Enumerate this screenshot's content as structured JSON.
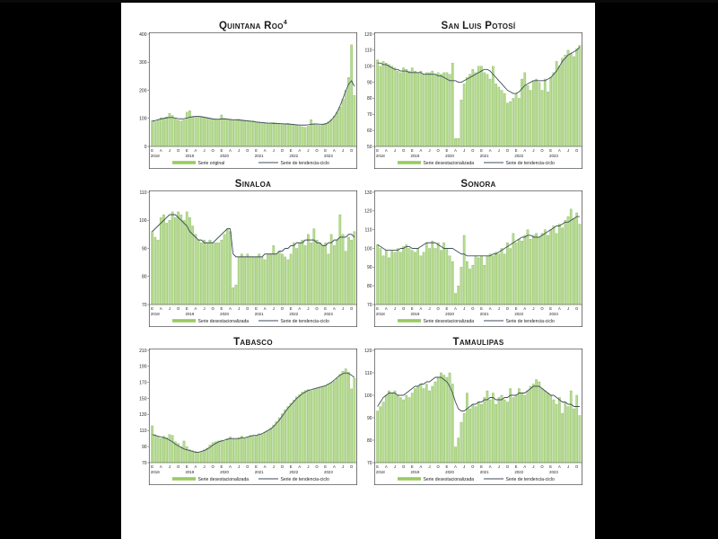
{
  "page": {
    "background": "#000000",
    "slide_background": "#ffffff"
  },
  "colors": {
    "bar_fill": "#b7db90",
    "bar_stroke": "#7fb556",
    "trend_line": "#3f4e5c",
    "legend_swatch": "#98cb60",
    "box_border": "#404040",
    "tick_text": "#222222"
  },
  "chart_data": [
    {
      "type": "bar",
      "title": "Quintana Roo",
      "title_superscript": "4",
      "legend": {
        "series_label": "Serie original",
        "trend_label": "Serie de tendencia-ciclo"
      },
      "y_axis": {
        "min": 0,
        "max": 400,
        "step": 100
      },
      "x_axis": {
        "month_labels": [
          "E",
          "A",
          "J",
          "O"
        ],
        "years": [
          "2018",
          "2019",
          "2020",
          "2021",
          "2022",
          "2023"
        ]
      },
      "series": [
        92,
        88,
        96,
        102,
        100,
        105,
        118,
        110,
        98,
        94,
        91,
        95,
        122,
        127,
        105,
        107,
        108,
        106,
        105,
        103,
        99,
        97,
        95,
        96,
        112,
        100,
        98,
        96,
        95,
        96,
        97,
        95,
        93,
        92,
        90,
        91,
        88,
        86,
        85,
        84,
        83,
        84,
        85,
        83,
        82,
        81,
        80,
        82,
        80,
        78,
        75,
        72,
        70,
        68,
        72,
        95,
        78,
        76,
        75,
        78,
        82,
        88,
        96,
        108,
        122,
        140,
        168,
        200,
        246,
        362,
        182
      ],
      "trend": [
        90,
        92,
        95,
        98,
        100,
        102,
        103,
        103,
        101,
        99,
        98,
        99,
        101,
        104,
        106,
        107,
        107,
        106,
        104,
        102,
        100,
        98,
        97,
        97,
        98,
        98,
        97,
        96,
        95,
        95,
        94,
        93,
        92,
        91,
        90,
        89,
        87,
        86,
        85,
        84,
        83,
        83,
        82,
        82,
        81,
        81,
        80,
        80,
        79,
        78,
        77,
        76,
        76,
        76,
        77,
        79,
        80,
        80,
        79,
        79,
        80,
        85,
        94,
        106,
        122,
        144,
        170,
        198,
        222,
        234,
        214
      ]
    },
    {
      "type": "bar",
      "title": "San Luis Potosí",
      "legend": {
        "series_label": "Serie desestacionalizada",
        "trend_label": "Serie de tendencia-ciclo"
      },
      "y_axis": {
        "min": 50,
        "max": 120,
        "step": 10
      },
      "x_axis": {
        "month_labels": [
          "E",
          "A",
          "J",
          "O"
        ],
        "years": [
          "2018",
          "2019",
          "2020",
          "2021",
          "2022",
          "2023"
        ]
      },
      "series": [
        104,
        100,
        103,
        102,
        101,
        100,
        99,
        97,
        96,
        99,
        98,
        97,
        99,
        97,
        96,
        97,
        95,
        96,
        96,
        97,
        95,
        96,
        95,
        96,
        96,
        95,
        102,
        55,
        55,
        79,
        89,
        93,
        95,
        98,
        96,
        100,
        100,
        96,
        95,
        92,
        100,
        89,
        87,
        85,
        83,
        77,
        78,
        80,
        83,
        80,
        92,
        96,
        88,
        85,
        91,
        92,
        90,
        85,
        92,
        84,
        93,
        96,
        103,
        100,
        105,
        107,
        110,
        108,
        106,
        111,
        113
      ],
      "trend": [
        102,
        102,
        101,
        101,
        100,
        99,
        98,
        98,
        97,
        97,
        97,
        96,
        96,
        96,
        96,
        96,
        95,
        95,
        95,
        95,
        95,
        94,
        94,
        93,
        92,
        91,
        91,
        91,
        90,
        90,
        91,
        92,
        93,
        94,
        95,
        96,
        97,
        98,
        98,
        97,
        95,
        93,
        91,
        89,
        87,
        85,
        84,
        83,
        83,
        84,
        86,
        88,
        89,
        90,
        91,
        91,
        91,
        91,
        91,
        92,
        93,
        95,
        97,
        100,
        103,
        105,
        107,
        108,
        109,
        110,
        112
      ]
    },
    {
      "type": "bar",
      "title": "Sinaloa",
      "legend": {
        "series_label": "Serie desestacionalizada",
        "trend_label": "Serie de tendencia-ciclo"
      },
      "y_axis": {
        "min": 70,
        "max": 110,
        "step": 10
      },
      "x_axis": {
        "month_labels": [
          "E",
          "A",
          "J",
          "O"
        ],
        "years": [
          "2018",
          "2019",
          "2020",
          "2021",
          "2022",
          "2023"
        ]
      },
      "series": [
        96,
        94,
        93,
        101,
        102,
        99,
        100,
        103,
        101,
        103,
        102,
        100,
        103,
        101,
        98,
        95,
        93,
        92,
        93,
        92,
        93,
        92,
        92,
        92,
        93,
        95,
        97,
        96,
        76,
        77,
        87,
        88,
        87,
        88,
        87,
        87,
        87,
        88,
        87,
        86,
        88,
        88,
        91,
        88,
        89,
        88,
        87,
        86,
        88,
        92,
        90,
        92,
        93,
        91,
        95,
        92,
        97,
        93,
        92,
        91,
        92,
        88,
        95,
        91,
        93,
        102,
        95,
        89,
        94,
        93,
        96
      ],
      "trend": [
        96,
        97,
        98,
        99,
        100,
        101,
        102,
        102,
        102,
        101,
        100,
        99,
        98,
        96,
        95,
        94,
        93,
        93,
        92,
        92,
        92,
        92,
        93,
        94,
        95,
        96,
        97,
        97,
        88,
        87,
        87,
        87,
        87,
        87,
        87,
        87,
        87,
        87,
        87,
        88,
        88,
        88,
        88,
        88,
        89,
        89,
        90,
        90,
        91,
        91,
        92,
        92,
        92,
        93,
        93,
        93,
        93,
        92,
        92,
        91,
        91,
        92,
        92,
        93,
        93,
        94,
        94,
        94,
        95,
        95,
        94
      ]
    },
    {
      "type": "bar",
      "title": "Sonora",
      "legend": {
        "series_label": "Serie desestacionalizada",
        "trend_label": "Serie de tendencia-ciclo"
      },
      "y_axis": {
        "min": 70,
        "max": 130,
        "step": 10
      },
      "x_axis": {
        "month_labels": [
          "E",
          "A",
          "J",
          "O"
        ],
        "years": [
          "2018",
          "2019",
          "2020",
          "2021",
          "2022",
          "2023"
        ]
      },
      "series": [
        102,
        100,
        96,
        99,
        95,
        99,
        98,
        100,
        98,
        101,
        102,
        100,
        99,
        98,
        100,
        96,
        98,
        103,
        100,
        104,
        100,
        103,
        99,
        103,
        100,
        96,
        93,
        76,
        80,
        90,
        107,
        93,
        89,
        91,
        96,
        95,
        96,
        91,
        96,
        97,
        96,
        98,
        97,
        100,
        97,
        103,
        100,
        108,
        103,
        105,
        104,
        107,
        110,
        105,
        107,
        108,
        106,
        108,
        110,
        107,
        110,
        112,
        108,
        113,
        111,
        115,
        117,
        121,
        116,
        119,
        113
      ],
      "trend": [
        102,
        101,
        100,
        99,
        99,
        99,
        99,
        99,
        100,
        100,
        101,
        101,
        100,
        100,
        100,
        101,
        102,
        103,
        103,
        103,
        103,
        102,
        101,
        100,
        100,
        100,
        100,
        99,
        98,
        97,
        97,
        96,
        96,
        96,
        96,
        96,
        96,
        96,
        96,
        96,
        97,
        97,
        98,
        99,
        100,
        101,
        102,
        103,
        104,
        105,
        106,
        106,
        107,
        107,
        106,
        106,
        106,
        107,
        108,
        109,
        110,
        111,
        112,
        112,
        113,
        114,
        114,
        115,
        116,
        117,
        117
      ]
    },
    {
      "type": "bar",
      "title": "Tabasco",
      "legend": {
        "series_label": "Serie desestacionalizada",
        "trend_label": "Serie de tendencia-ciclo"
      },
      "y_axis": {
        "min": 70,
        "max": 210,
        "step": 20
      },
      "x_axis": {
        "month_labels": [
          "E",
          "A",
          "J",
          "O"
        ],
        "years": [
          "2018",
          "2019",
          "2020",
          "2021",
          "2022",
          "2023"
        ]
      },
      "series": [
        116,
        105,
        102,
        100,
        103,
        101,
        105,
        104,
        96,
        94,
        90,
        97,
        90,
        86,
        85,
        84,
        83,
        84,
        86,
        88,
        92,
        95,
        96,
        97,
        98,
        97,
        100,
        102,
        100,
        99,
        101,
        103,
        100,
        102,
        104,
        103,
        104,
        106,
        105,
        108,
        110,
        113,
        117,
        121,
        126,
        131,
        136,
        140,
        144,
        148,
        152,
        155,
        158,
        160,
        161,
        160,
        162,
        163,
        164,
        165,
        166,
        168,
        170,
        172,
        175,
        180,
        184,
        187,
        183,
        162,
        175
      ],
      "trend": [
        105,
        104,
        103,
        102,
        101,
        100,
        98,
        96,
        93,
        91,
        89,
        87,
        86,
        85,
        84,
        83,
        83,
        84,
        85,
        87,
        89,
        92,
        94,
        96,
        97,
        98,
        99,
        100,
        100,
        100,
        100,
        101,
        101,
        102,
        103,
        104,
        104,
        105,
        106,
        108,
        110,
        112,
        115,
        119,
        123,
        128,
        133,
        138,
        142,
        146,
        150,
        153,
        156,
        158,
        160,
        161,
        162,
        163,
        164,
        165,
        166,
        168,
        170,
        173,
        176,
        179,
        181,
        182,
        181,
        179,
        176
      ]
    },
    {
      "type": "bar",
      "title": "Tamaulipas",
      "legend": {
        "series_label": "Serie desestacionalizada",
        "trend_label": "Serie de tendencia-ciclo"
      },
      "y_axis": {
        "min": 70,
        "max": 120,
        "step": 10
      },
      "x_axis": {
        "month_labels": [
          "E",
          "A",
          "J",
          "O"
        ],
        "years": [
          "2018",
          "2019",
          "2020",
          "2021",
          "2022",
          "2023"
        ]
      },
      "series": [
        93,
        95,
        97,
        100,
        102,
        101,
        102,
        100,
        99,
        98,
        100,
        99,
        101,
        103,
        104,
        105,
        103,
        105,
        102,
        104,
        106,
        108,
        110,
        109,
        108,
        110,
        105,
        77,
        81,
        88,
        92,
        101,
        94,
        96,
        95,
        97,
        96,
        99,
        102,
        98,
        101,
        96,
        99,
        100,
        98,
        97,
        103,
        99,
        100,
        103,
        101,
        100,
        102,
        104,
        105,
        107,
        106,
        103,
        102,
        101,
        100,
        98,
        96,
        99,
        92,
        97,
        95,
        102,
        94,
        100,
        91
      ],
      "trend": [
        95,
        97,
        99,
        100,
        101,
        101,
        101,
        100,
        100,
        100,
        101,
        102,
        103,
        104,
        104,
        105,
        105,
        106,
        106,
        107,
        108,
        108,
        108,
        107,
        106,
        104,
        101,
        97,
        94,
        93,
        93,
        94,
        95,
        96,
        96,
        97,
        97,
        98,
        98,
        99,
        99,
        98,
        98,
        98,
        99,
        99,
        100,
        100,
        100,
        101,
        101,
        101,
        102,
        103,
        104,
        104,
        104,
        103,
        102,
        101,
        100,
        100,
        99,
        98,
        97,
        97,
        96,
        96,
        95,
        95,
        95
      ]
    }
  ]
}
